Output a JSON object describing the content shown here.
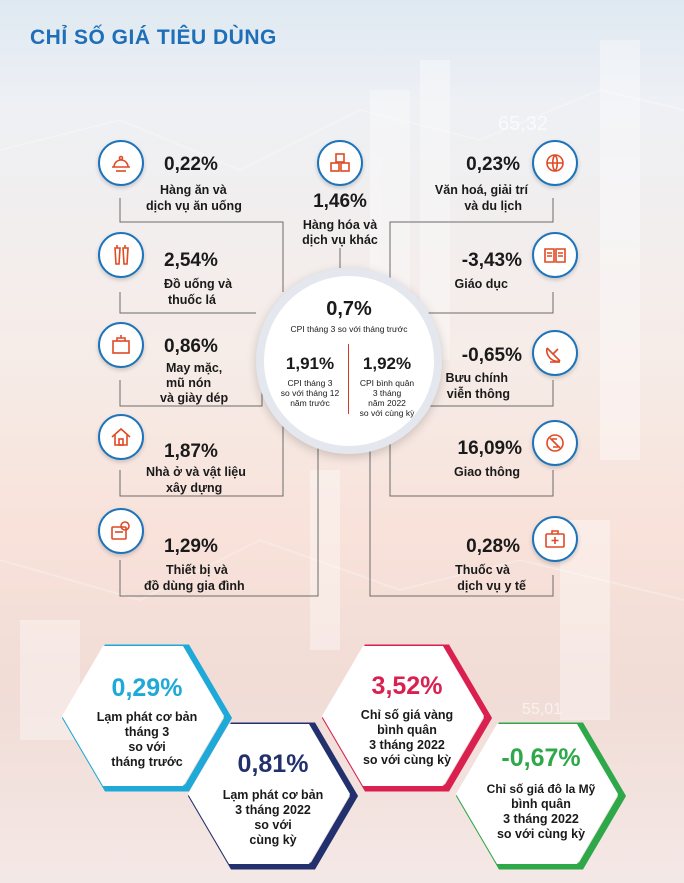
{
  "title": "CHỈ SỐ GIÁ TIÊU DÙNG",
  "watermark_numbers": [
    "65,32",
    "55,01"
  ],
  "items": {
    "food": {
      "value": "0,22%",
      "label1": "Hàng ăn và",
      "label2": "dịch vụ ăn uống",
      "icon": "food-service-icon"
    },
    "other_goods": {
      "value": "1,46%",
      "label1": "Hàng hóa và",
      "label2": "dịch vụ khác",
      "icon": "goods-boxes-icon"
    },
    "culture": {
      "value": "0,23%",
      "label1": "Văn hoá, giải trí",
      "label2": "và du lịch",
      "icon": "globe-plane-icon"
    },
    "drinks": {
      "value": "2,54%",
      "label1": "Đồ uống và",
      "label2": "thuốc lá",
      "icon": "drinks-icon"
    },
    "education": {
      "value": "-3,43%",
      "label1": "Giáo dục",
      "label2": "",
      "icon": "book-icon"
    },
    "clothing": {
      "value": "0,86%",
      "label1": "May mặc,",
      "label2": "mũ nón",
      "label3": "và giày dép",
      "icon": "clothing-icon"
    },
    "telecom": {
      "value": "-0,65%",
      "label1": "Bưu chính",
      "label2": "viễn thông",
      "icon": "satellite-dish-icon"
    },
    "housing": {
      "value": "1,87%",
      "label1": "Nhà ở và vật liệu",
      "label2": "xây dựng",
      "icon": "house-icon"
    },
    "transport": {
      "value": "16,09%",
      "label1": "Giao thông",
      "label2": "",
      "icon": "traffic-icon"
    },
    "household": {
      "value": "1,29%",
      "label1": "Thiết bị và",
      "label2": "đồ dùng gia đình",
      "icon": "appliance-icon"
    },
    "health": {
      "value": "0,28%",
      "label1": "Thuốc và",
      "label2": "dịch vụ y tế",
      "icon": "medical-kit-icon"
    }
  },
  "center": {
    "main_value": "0,7%",
    "main_label": "CPI tháng 3 so với tháng trước",
    "left_value": "1,91%",
    "left_label": [
      "CPI tháng 3",
      "so với tháng 12",
      "năm trước"
    ],
    "right_value": "1,92%",
    "right_label": [
      "CPI bình quân",
      "3 tháng",
      "năm 2022",
      "so với cùng kỳ"
    ]
  },
  "hexagons": [
    {
      "value": "0,29%",
      "lines": [
        "Lạm phát cơ bản",
        "tháng 3",
        "so với",
        "tháng trước"
      ],
      "accent": "#1fa9d8"
    },
    {
      "value": "0,81%",
      "lines": [
        "Lạm phát cơ bản",
        "3 tháng 2022",
        "so với",
        "cùng kỳ"
      ],
      "accent": "#23306e"
    },
    {
      "value": "3,52%",
      "lines": [
        "Chỉ số giá vàng",
        "bình quân",
        "3 tháng 2022",
        "so với cùng kỳ"
      ],
      "accent": "#d9204f"
    },
    {
      "value": "-0,67%",
      "lines": [
        "Chỉ số giá đô la Mỹ",
        "bình quân",
        "3 tháng 2022",
        "so với cùng kỳ"
      ],
      "accent": "#2fa84a"
    }
  ],
  "colors": {
    "title": "#1e6fb8",
    "icon_ring": "#1d74bb",
    "icon_glyph": "#e04a24",
    "line": "#555555"
  }
}
